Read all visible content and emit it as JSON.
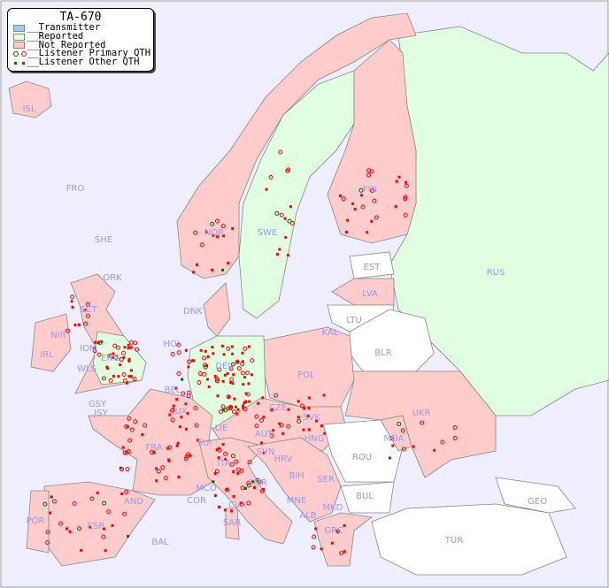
{
  "legend": {
    "title": "TA-670",
    "items": [
      {
        "label": "__Transmitter",
        "color": "#99ccff"
      },
      {
        "label": "__Reported",
        "color": "#e0ffe0"
      },
      {
        "label": "__Not Reported",
        "color": "#ffcccc"
      },
      {
        "label": "__Listener Primary QTH",
        "colors": [
          "#006600",
          "#ff0000"
        ]
      },
      {
        "label": "__Listener Other QTH",
        "colors": [
          "#006600",
          "#ff0000"
        ]
      }
    ]
  },
  "colors": {
    "sea": "#eeeeff",
    "reported": "#e0ffe0",
    "not_reported": "#ffcccc",
    "other": "#ffffff",
    "label": "#9999ee"
  },
  "countries": [
    "ISL",
    "FRO",
    "SHE",
    "ORK",
    "NOR",
    "SWE",
    "FIN",
    "EST",
    "LVA",
    "LTU",
    "RUS",
    "KAL",
    "BLR",
    "DNK",
    "HOL",
    "DEU",
    "POL",
    "IRL",
    "NIR",
    "SCT",
    "IOM",
    "WLS",
    "ENG",
    "GSY",
    "JSY",
    "BEL",
    "LUX",
    "FRA",
    "SUI",
    "LIE",
    "AUT",
    "CZE",
    "SVK",
    "HNG",
    "UKR",
    "MDA",
    "ROU",
    "SVN",
    "HRV",
    "BIH",
    "SER",
    "BUL",
    "MNE",
    "ALB",
    "MKD",
    "GRC",
    "TUR",
    "GEO",
    "ITA",
    "SMR",
    "MCO",
    "COR",
    "CVA",
    "SAR",
    "POR",
    "ESP",
    "AND",
    "BAL"
  ]
}
